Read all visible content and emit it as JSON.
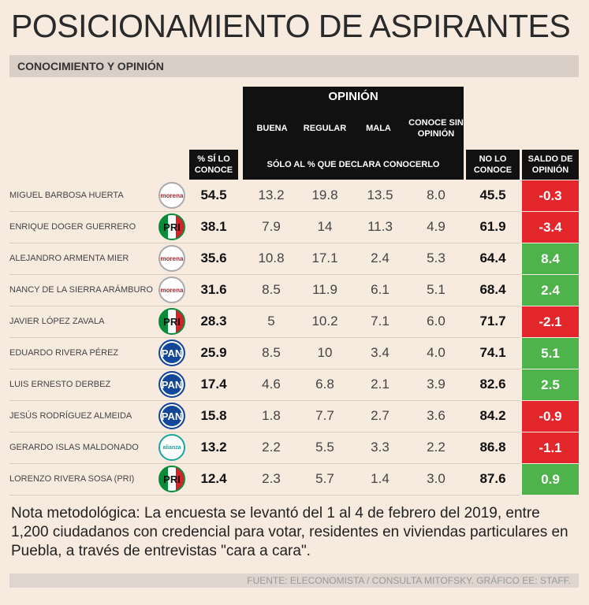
{
  "title": "POSICIONAMIENTO DE ASPIRANTES",
  "subtitle": "CONOCIMIENTO Y OPINIÓN",
  "table": {
    "group_header": "OPINIÓN",
    "opinion_columns": [
      "BUENA",
      "REGULAR",
      "MALA",
      "CONOCE SIN OPINIÓN"
    ],
    "known_header": "% SÍ LO CONOCE",
    "opinion_note": "SÓLO AL % QUE DECLARA CONOCERLO",
    "unknown_header": "NO LO CONOCE",
    "balance_header": "SALDO DE OPINIÓN",
    "rows": [
      {
        "name": "MIGUEL BARBOSA HUERTA",
        "party": "morena",
        "known": "54.5",
        "opinion": [
          "13.2",
          "19.8",
          "13.5",
          "8.0"
        ],
        "unknown": "45.5",
        "balance": "-0.3"
      },
      {
        "name": "ENRIQUE DOGER GUERRERO",
        "party": "PRI",
        "known": "38.1",
        "opinion": [
          "7.9",
          "14",
          "11.3",
          "4.9"
        ],
        "unknown": "61.9",
        "balance": "-3.4"
      },
      {
        "name": "ALEJANDRO ARMENTA MIER",
        "party": "morena",
        "known": "35.6",
        "opinion": [
          "10.8",
          "17.1",
          "2.4",
          "5.3"
        ],
        "unknown": "64.4",
        "balance": "8.4"
      },
      {
        "name": "NANCY DE LA SIERRA ARÁMBURO",
        "party": "morena",
        "known": "31.6",
        "opinion": [
          "8.5",
          "11.9",
          "6.1",
          "5.1"
        ],
        "unknown": "68.4",
        "balance": "2.4"
      },
      {
        "name": "JAVIER LÓPEZ ZAVALA",
        "party": "PRI",
        "known": "28.3",
        "opinion": [
          "5",
          "10.2",
          "7.1",
          "6.0"
        ],
        "unknown": "71.7",
        "balance": "-2.1"
      },
      {
        "name": "EDUARDO RIVERA PÉREZ",
        "party": "PAN",
        "known": "25.9",
        "opinion": [
          "8.5",
          "10",
          "3.4",
          "4.0"
        ],
        "unknown": "74.1",
        "balance": "5.1"
      },
      {
        "name": "LUIS ERNESTO DERBEZ",
        "party": "PAN",
        "known": "17.4",
        "opinion": [
          "4.6",
          "6.8",
          "2.1",
          "3.9"
        ],
        "unknown": "82.6",
        "balance": "2.5"
      },
      {
        "name": "JESÚS RODRÍGUEZ ALMEIDA",
        "party": "PAN",
        "known": "15.8",
        "opinion": [
          "1.8",
          "7.7",
          "2.7",
          "3.6"
        ],
        "unknown": "84.2",
        "balance": "-0.9"
      },
      {
        "name": "GERARDO ISLAS MALDONADO",
        "party": "alianza",
        "known": "13.2",
        "opinion": [
          "2.2",
          "5.5",
          "3.3",
          "2.2"
        ],
        "unknown": "86.8",
        "balance": "-1.1"
      },
      {
        "name": "LORENZO RIVERA SOSA (PRI)",
        "party": "PRI",
        "known": "12.4",
        "opinion": [
          "2.3",
          "5.7",
          "1.4",
          "3.0"
        ],
        "unknown": "87.6",
        "balance": "0.9"
      }
    ]
  },
  "note": "Nota metodológica: La encuesta se levantó del 1 al 4 de febrero del 2019, entre 1,200 ciudadanos con credencial para votar, residentes en viviendas particulares en Puebla, a través de entrevistas \"cara a cara\".",
  "source": "FUENTE: ELECONOMISTA / CONSULTA MITOFSKY. GRÁFICO EE: STAFF."
}
